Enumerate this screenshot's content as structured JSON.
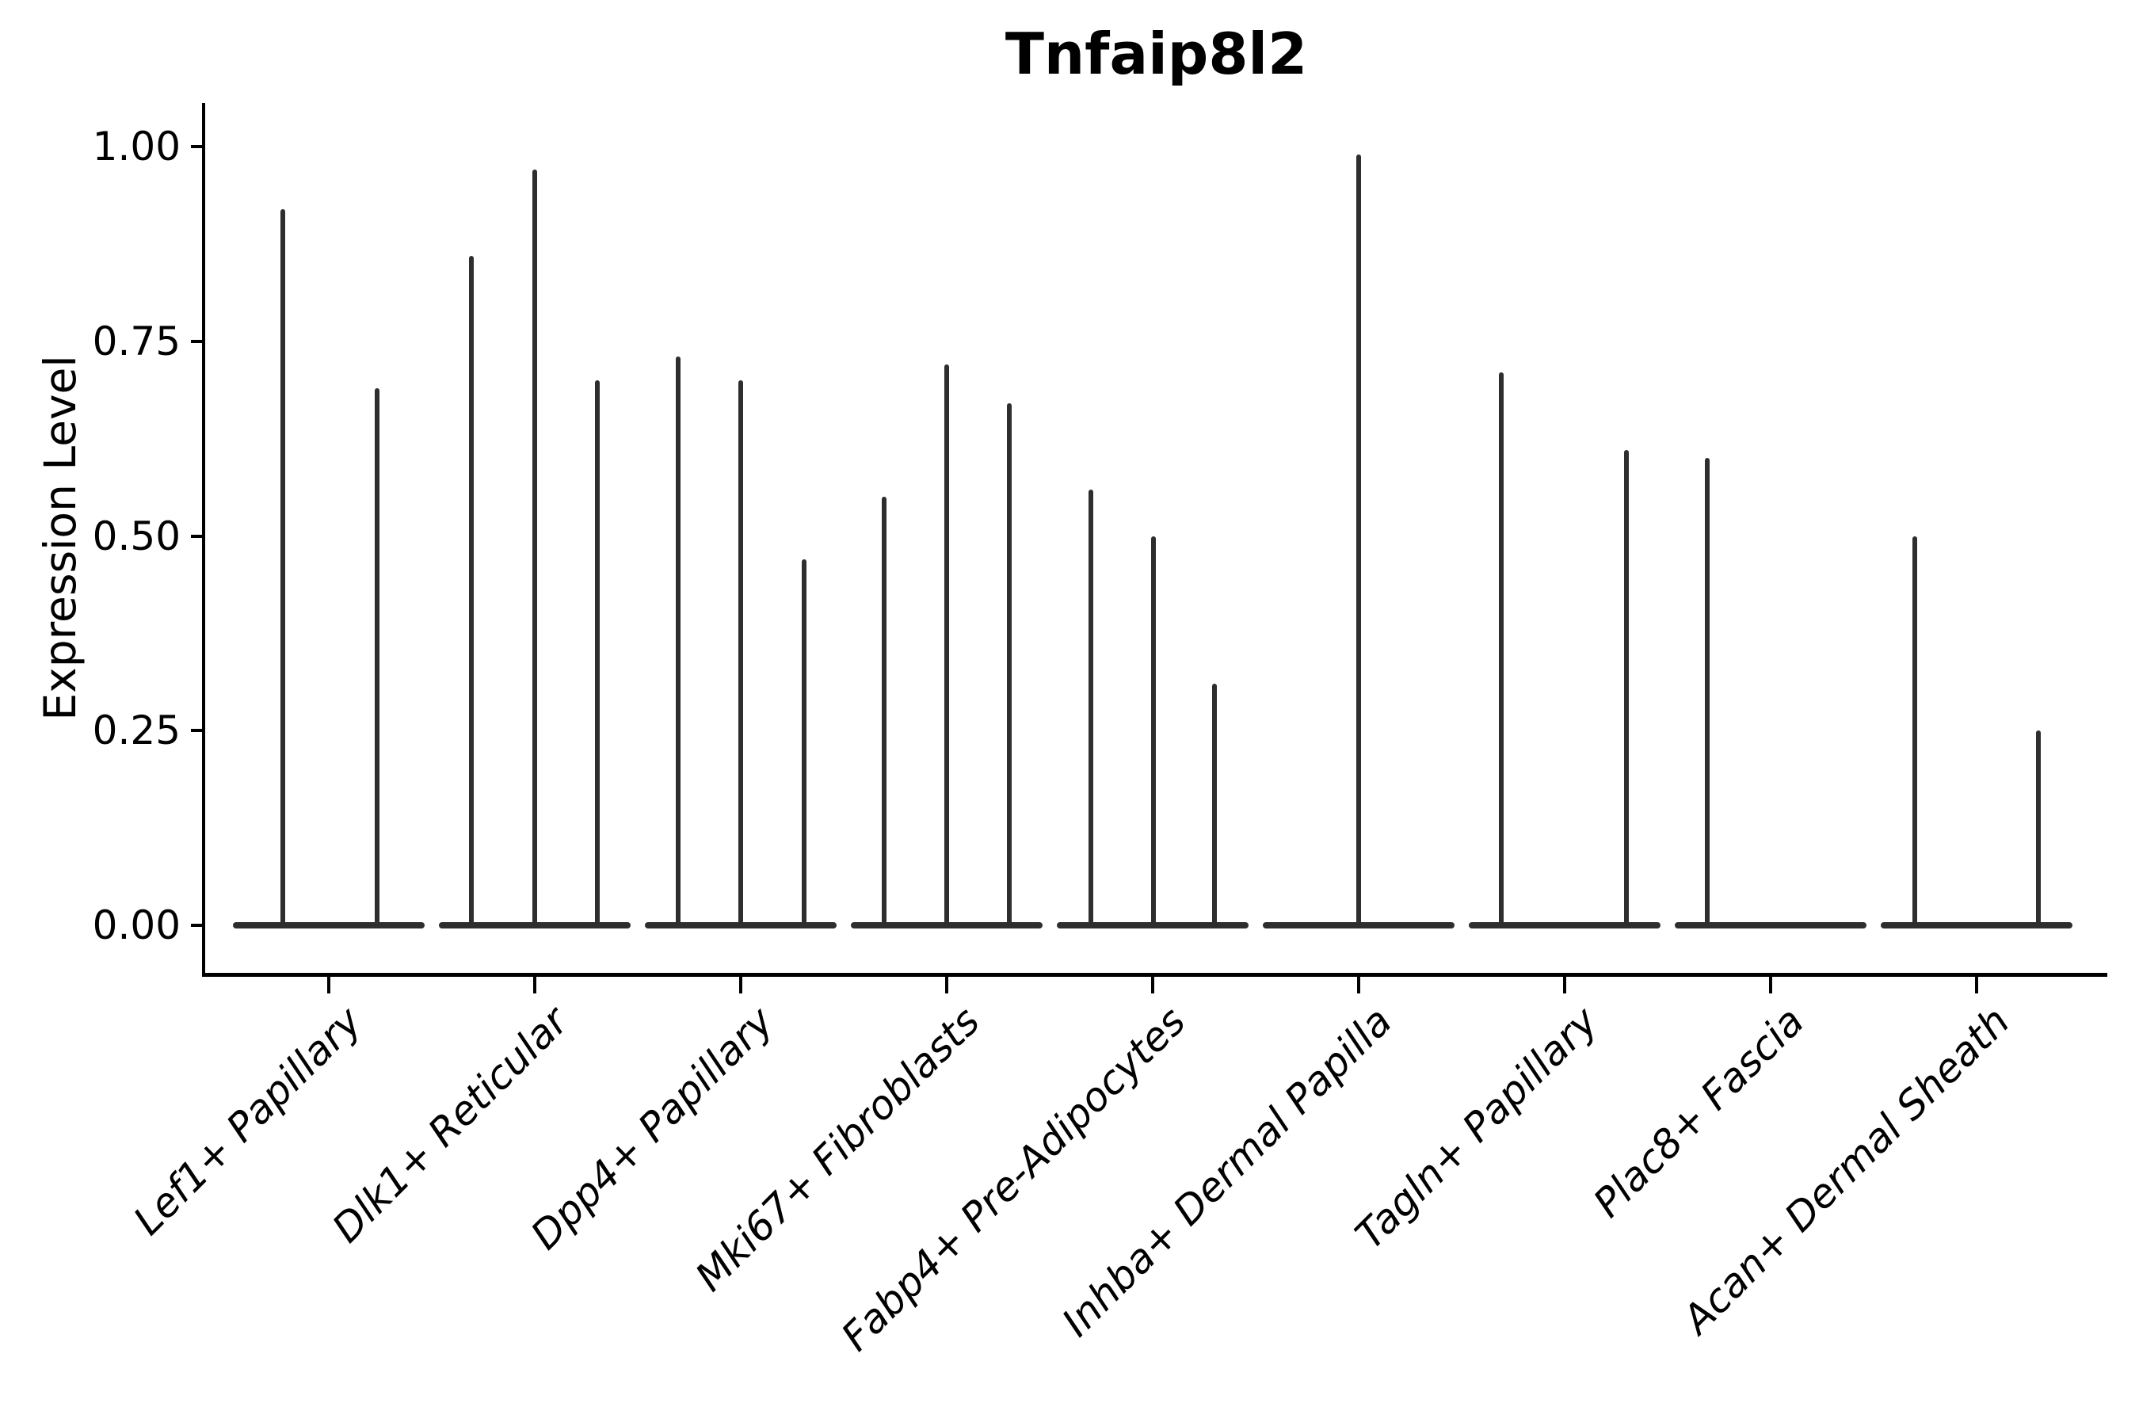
{
  "title": "Tnfaip8l2",
  "colors": {
    "violin": "#2e2e2e",
    "axis": "#000000",
    "text": "#000000",
    "background": "#ffffff"
  },
  "chart_data": {
    "type": "violin",
    "title": "Tnfaip8l2",
    "xlabel": "",
    "ylabel": "Expression Level",
    "ylim": [
      0,
      1.05
    ],
    "grid": false,
    "legend": "none",
    "ytick_labels": [
      "0.00",
      "0.25",
      "0.50",
      "0.75",
      "1.00"
    ],
    "ytick_values": [
      0,
      0.25,
      0.5,
      0.75,
      1.0
    ],
    "description": "Thin violin plots; bulk of each distribution is flattened at 0 with a narrow spike up to the maximum expression value",
    "categories": [
      "Lef1+ Papillary",
      "Dlk1+ Reticular",
      "Dpp4+ Papillary",
      "Mki67+ Fibroblasts",
      "Fabp4+ Pre-Adipocytes",
      "Inhba+ Dermal Papilla",
      "Tagln+ Papillary",
      "Plac8+ Fascia",
      "Acan+ Dermal Sheath"
    ],
    "groups": [
      {
        "category": "Lef1+ Papillary",
        "violins": [
          {
            "dx": -58,
            "max": 0.92
          },
          {
            "dx": 61,
            "max": 0.69
          }
        ]
      },
      {
        "category": "Dlk1+ Reticular",
        "violins": [
          {
            "dx": -80,
            "max": 0.86
          },
          {
            "dx": 0,
            "max": 0.97
          },
          {
            "dx": 79,
            "max": 0.7
          }
        ]
      },
      {
        "category": "Dpp4+ Papillary",
        "violins": [
          {
            "dx": -79,
            "max": 0.73
          },
          {
            "dx": 0,
            "max": 0.7
          },
          {
            "dx": 80,
            "max": 0.47
          }
        ]
      },
      {
        "category": "Mki67+ Fibroblasts",
        "violins": [
          {
            "dx": -79,
            "max": 0.55
          },
          {
            "dx": 0,
            "max": 0.72
          },
          {
            "dx": 79,
            "max": 0.67
          }
        ]
      },
      {
        "category": "Fabp4+ Pre-Adipocytes",
        "violins": [
          {
            "dx": -78,
            "max": 0.56
          },
          {
            "dx": 1,
            "max": 0.5
          },
          {
            "dx": 78,
            "max": 0.31
          }
        ]
      },
      {
        "category": "Inhba+ Dermal Papilla",
        "violins": [
          {
            "dx": 0,
            "max": 0.99
          }
        ]
      },
      {
        "category": "Tagln+ Papillary",
        "violins": [
          {
            "dx": -80,
            "max": 0.71
          },
          {
            "dx": 78,
            "max": 0.61
          }
        ]
      },
      {
        "category": "Plac8+ Fascia",
        "violins": [
          {
            "dx": -80,
            "max": 0.6
          }
        ]
      },
      {
        "category": "Acan+ Dermal Sheath",
        "violins": [
          {
            "dx": -78,
            "max": 0.5
          },
          {
            "dx": 78,
            "max": 0.25
          }
        ]
      }
    ]
  }
}
